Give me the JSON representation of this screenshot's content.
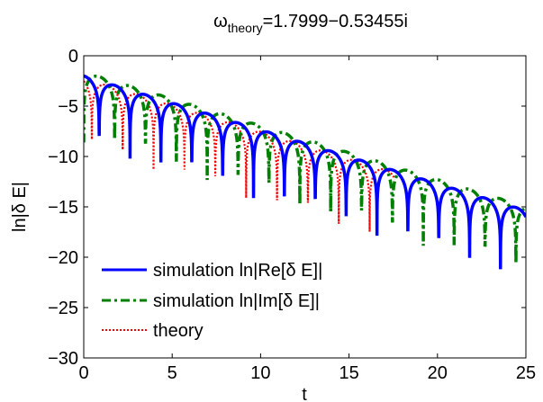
{
  "chart_data": {
    "type": "line",
    "title": {
      "base": "ω",
      "subscript": "theory",
      "rest": "=1.7999−0.53455i"
    },
    "xlabel": "t",
    "ylabel": "ln|δ E|",
    "xlim": [
      0,
      25
    ],
    "ylim": [
      -30,
      0
    ],
    "xticks": [
      0,
      5,
      10,
      15,
      20,
      25
    ],
    "yticks": [
      0,
      -5,
      -10,
      -15,
      -20,
      -25,
      -30
    ],
    "grid": false,
    "legend_position": "bottom-left",
    "series": [
      {
        "name": "simulation ln|Re[δ E]|",
        "color": "#0000ff",
        "style": "solid",
        "omega_r": 1.7999,
        "gamma": 0.53455,
        "amplitude_log": -2.0,
        "phase": 0.0,
        "sample_peaks": [
          [
            0.7,
            -2.8
          ],
          [
            2.45,
            -3.7
          ],
          [
            4.2,
            -4.6
          ],
          [
            5.95,
            -5.6
          ],
          [
            7.7,
            -6.6
          ],
          [
            9.45,
            -7.5
          ],
          [
            11.2,
            -8.4
          ],
          [
            12.95,
            -9.4
          ],
          [
            14.7,
            -10.4
          ],
          [
            16.45,
            -11.2
          ],
          [
            18.2,
            -12.2
          ],
          [
            19.95,
            -13.1
          ],
          [
            21.7,
            -14.1
          ],
          [
            23.45,
            -15.2
          ]
        ],
        "deep_dips": [
          [
            23.3,
            -22.8
          ]
        ]
      },
      {
        "name": "simulation ln|Im[δ E]|",
        "color": "#008000",
        "style": "dashdot",
        "omega_r": 1.7999,
        "gamma": 0.53455,
        "amplitude_log": -1.6,
        "phase": 1.5708,
        "sample_peaks": [
          [
            0.2,
            -2.0
          ],
          [
            1.85,
            -2.7
          ],
          [
            3.6,
            -3.6
          ],
          [
            5.35,
            -4.6
          ],
          [
            7.1,
            -5.5
          ],
          [
            8.85,
            -6.4
          ],
          [
            10.6,
            -7.4
          ],
          [
            12.35,
            -8.3
          ],
          [
            14.1,
            -9.2
          ],
          [
            15.85,
            -10.2
          ],
          [
            17.6,
            -11.1
          ],
          [
            19.35,
            -12.0
          ],
          [
            21.1,
            -13.0
          ],
          [
            22.85,
            -13.9
          ],
          [
            24.6,
            -14.9
          ]
        ],
        "deep_dips": [
          [
            24.2,
            -20.6
          ]
        ]
      },
      {
        "name": "theory",
        "color": "#ff0000",
        "style": "dotted",
        "omega_r": 1.7999,
        "gamma": 0.53455,
        "amplitude_log": -2.2,
        "phase": 0.75,
        "sample_peaks": [
          [
            0.5,
            -2.6
          ],
          [
            2.25,
            -3.4
          ],
          [
            4.0,
            -4.3
          ],
          [
            5.75,
            -5.3
          ],
          [
            7.5,
            -6.2
          ],
          [
            9.25,
            -7.1
          ],
          [
            11.0,
            -8.1
          ],
          [
            12.75,
            -9.0
          ],
          [
            14.5,
            -9.9
          ],
          [
            16.25,
            -10.9
          ]
        ],
        "deep_dips": [
          [
            17.4,
            -19.3
          ]
        ]
      }
    ]
  }
}
